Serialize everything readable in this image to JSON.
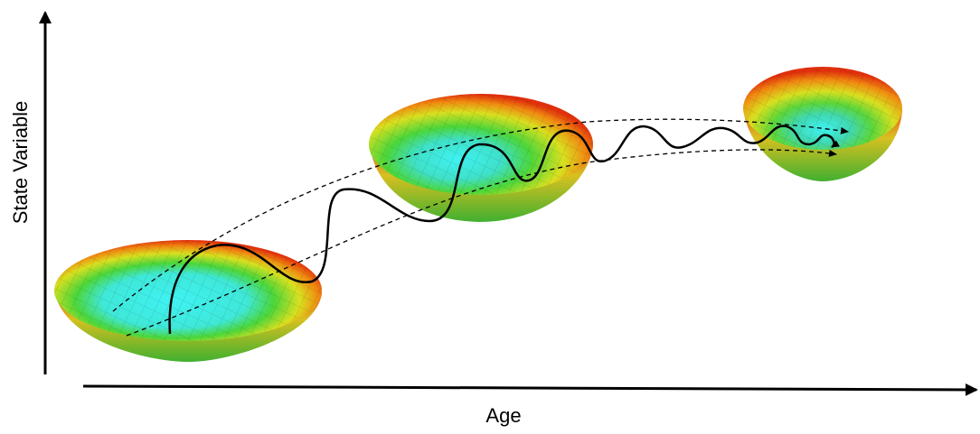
{
  "axes": {
    "y_label": "State Variable",
    "x_label": "Age"
  }
}
